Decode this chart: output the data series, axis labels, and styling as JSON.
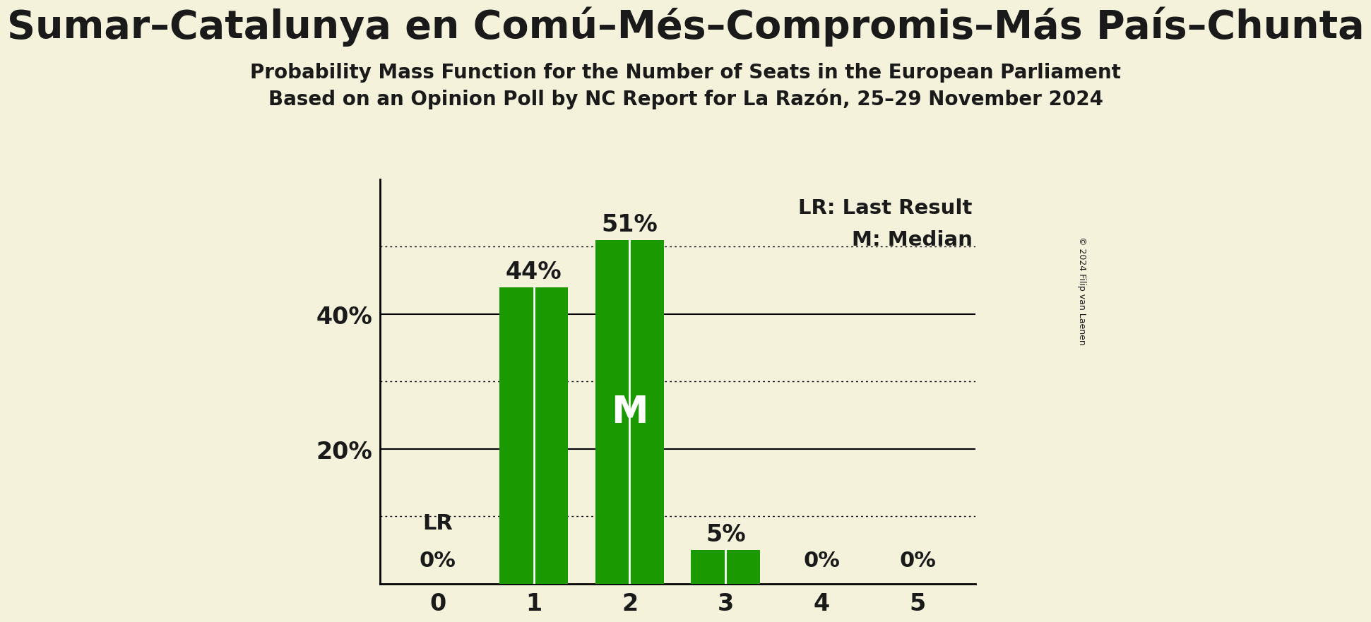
{
  "title": "Sumar–Catalunya en Comú–Més–Compromis–Más País–Chunta",
  "subtitle1": "Probability Mass Function for the Number of Seats in the European Parliament",
  "subtitle2": "Based on an Opinion Poll by NC Report for La Razón, 25–29 November 2024",
  "seats": [
    0,
    1,
    2,
    3,
    4,
    5
  ],
  "probabilities": [
    0.0,
    0.44,
    0.51,
    0.05,
    0.0,
    0.0
  ],
  "bar_color": "#1a9a00",
  "background_color": "#f5f2dc",
  "text_color": "#1a1a1a",
  "median_seat": 2,
  "lr_seat": 0,
  "ylim": [
    0,
    0.6
  ],
  "solid_yticks": [
    0.2,
    0.4
  ],
  "dotted_yticks": [
    0.1,
    0.3,
    0.5
  ],
  "copyright_text": "© 2024 Filip van Laenen",
  "lr_label": "LR",
  "median_label": "M",
  "legend_lr": "LR: Last Result",
  "legend_m": "M: Median"
}
